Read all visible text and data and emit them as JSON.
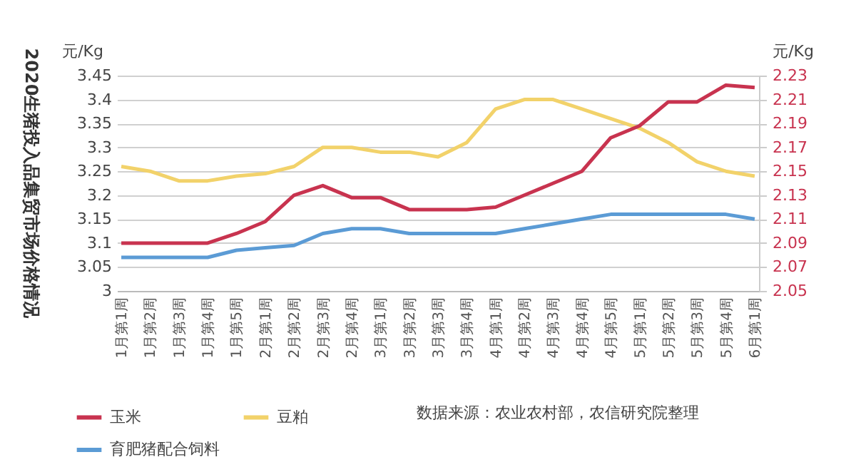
{
  "chart_data": {
    "type": "line",
    "title": "2020生猪投入品集贸市场价格情况",
    "ylabel": "元/Kg",
    "y2label": "元/Kg",
    "categories": [
      "1月第1周",
      "1月第2周",
      "1月第3周",
      "1月第4周",
      "1月第5周",
      "2月第1周",
      "2月第2周",
      "2月第3周",
      "2月第4周",
      "3月第1周",
      "3月第2周",
      "3月第3周",
      "3月第4周",
      "4月第1周",
      "4月第2周",
      "4月第3周",
      "4月第4周",
      "4月第5周",
      "5月第1周",
      "5月第2周",
      "5月第3周",
      "5月第4周",
      "6月第1周"
    ],
    "series": [
      {
        "name": "玉米",
        "color": "#c8334f",
        "axis": "y2",
        "values": [
          2.09,
          2.09,
          2.09,
          2.09,
          2.098,
          2.108,
          2.13,
          2.138,
          2.128,
          2.128,
          2.118,
          2.118,
          2.118,
          2.12,
          2.13,
          2.14,
          2.15,
          2.178,
          2.188,
          2.208,
          2.208,
          2.222,
          2.22
        ]
      },
      {
        "name": "豆粕",
        "color": "#f2d26a",
        "values": [
          3.26,
          3.25,
          3.23,
          3.23,
          3.24,
          3.245,
          3.26,
          3.3,
          3.3,
          3.29,
          3.29,
          3.28,
          3.31,
          3.38,
          3.4,
          3.4,
          3.38,
          3.36,
          3.34,
          3.31,
          3.27,
          3.25,
          3.24
        ]
      },
      {
        "name": "育肥猪配合饲料",
        "color": "#5b9bd5",
        "values": [
          3.07,
          3.07,
          3.07,
          3.07,
          3.085,
          3.09,
          3.095,
          3.12,
          3.13,
          3.13,
          3.12,
          3.12,
          3.12,
          3.12,
          3.13,
          3.14,
          3.15,
          3.16,
          3.16,
          3.16,
          3.16,
          3.16,
          3.15
        ]
      }
    ],
    "ylim": [
      3,
      3.45
    ],
    "yticks": [
      3,
      3.05,
      3.1,
      3.15,
      3.2,
      3.25,
      3.3,
      3.35,
      3.4,
      3.45
    ],
    "y2lim": [
      2.05,
      2.23
    ],
    "y2ticks": [
      2.05,
      2.07,
      2.09,
      2.11,
      2.13,
      2.15,
      2.17,
      2.19,
      2.21,
      2.23
    ],
    "grid": "y",
    "legend": "bottom left",
    "annotations": [
      "数据来源：农业农村部，农信研究院整理"
    ]
  }
}
